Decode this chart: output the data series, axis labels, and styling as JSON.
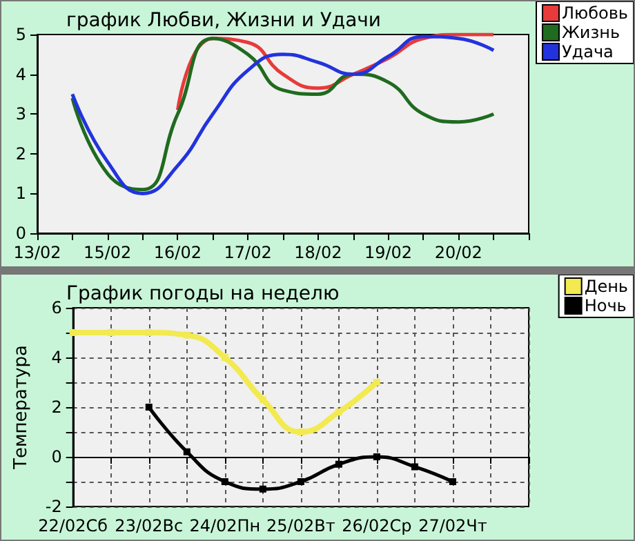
{
  "chart_data": [
    {
      "type": "line",
      "title": "график Любви, Жизни и Удачи",
      "ylim": [
        0,
        5
      ],
      "yticks": [
        0,
        1,
        2,
        3,
        4,
        5
      ],
      "categories": [
        "13/02",
        null,
        "15/02",
        null,
        "16/02",
        null,
        "17/02",
        null,
        "18/02",
        null,
        "19/02",
        null,
        "20/02",
        null,
        null
      ],
      "legend": "top right",
      "marker": "none",
      "series": [
        {
          "name": "Любовь",
          "color": "#e83a3a",
          "values": [
            null,
            null,
            null,
            null,
            3.1,
            4.9,
            4.8,
            4.0,
            3.65,
            4.0,
            4.4,
            4.9,
            5.0,
            5.0,
            null
          ]
        },
        {
          "name": "Жизнь",
          "color": "#1f6b1f",
          "values": [
            null,
            3.4,
            1.5,
            1.1,
            3.0,
            4.9,
            4.5,
            3.6,
            3.5,
            4.0,
            3.8,
            3.0,
            2.8,
            3.0,
            null
          ]
        },
        {
          "name": "Удача",
          "color": "#2233dd",
          "values": [
            null,
            3.5,
            1.8,
            1.0,
            1.7,
            3.0,
            4.1,
            4.5,
            4.3,
            4.0,
            4.45,
            4.95,
            4.9,
            4.6,
            null
          ]
        }
      ]
    },
    {
      "type": "line",
      "title": "График погоды на неделю",
      "ylabel": "Температура",
      "ylim": [
        -2,
        6
      ],
      "yticks": [
        -2,
        {
          "value": -1,
          "label": null
        },
        0,
        {
          "value": 1,
          "label": null
        },
        2,
        {
          "value": 3,
          "label": null
        },
        4,
        {
          "value": 5,
          "label": null
        },
        6
      ],
      "categories": [
        "22/02Сб",
        null,
        "23/02Вс",
        null,
        "24/02Пн",
        null,
        "25/02Вт",
        null,
        "26/02Ср",
        null,
        "27/02Чт",
        null,
        null
      ],
      "grid": true,
      "legend": "top right",
      "marker": "square",
      "series": [
        {
          "name": "День",
          "color": "#f2ea50",
          "values": [
            5,
            5,
            5,
            4.9,
            4,
            2.3,
            1,
            1.8,
            3,
            null,
            null,
            null,
            null
          ]
        },
        {
          "name": "Ночь",
          "color": "#000000",
          "values": [
            null,
            null,
            2,
            0.2,
            -1,
            -1.3,
            -1,
            -0.3,
            0,
            -0.4,
            -1,
            null,
            null
          ]
        }
      ]
    }
  ]
}
